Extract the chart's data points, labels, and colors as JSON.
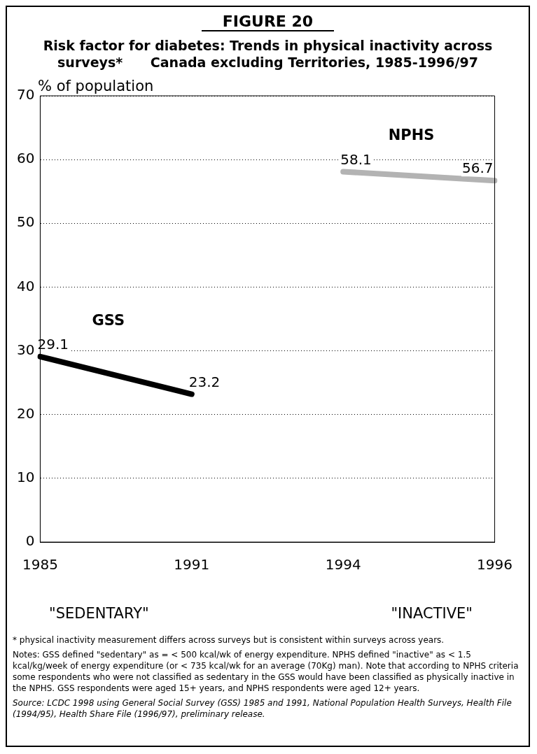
{
  "chart_data": {
    "type": "line",
    "title": "FIGURE 20",
    "subtitle": "Risk factor for diabetes: Trends in physical inactivity across surveys*      Canada excluding Territories, 1985-1996/97",
    "ylabel": "% of population",
    "categories": [
      "1985",
      "1991",
      "1994",
      "1996"
    ],
    "series": [
      {
        "name": "GSS",
        "color": "#000000",
        "values": [
          29.1,
          23.2,
          null,
          null
        ]
      },
      {
        "name": "NPHS",
        "color": "#b3b3b3",
        "values": [
          null,
          null,
          58.1,
          56.7
        ]
      }
    ],
    "ylim": [
      0,
      70
    ],
    "yticks": [
      0,
      10,
      20,
      30,
      40,
      50,
      60,
      70
    ],
    "grid": "y",
    "legend": false,
    "marker": "none",
    "data_labels": true,
    "annotations": [
      "\"SEDENTARY\"",
      "\"INACTIVE\"",
      "*  physical inactivity measurement differs across surveys but is consistent within surveys across years.",
      "Notes:  GSS defined \"sedentary\"  as  = < 500 kcal/wk of energy expenditure. NPHS defined \"inactive\" as < 1.5 kcal/kg/week of energy expenditure (or < 735 kcal/wk for an average (70Kg) man).  Note that according to NPHS criteria some respondents who were not classified as sedentary in the GSS would have been classified as physically inactive in the NPHS. GSS respondents were aged 15+ years, and NPHS respondents were aged 12+ years.",
      "Source:  LCDC 1998    using General Social Survey  (GSS) 1985 and 1991, National Population Health Surveys, Health File (1994/95), Health Share File (1996/97), preliminary release."
    ]
  }
}
